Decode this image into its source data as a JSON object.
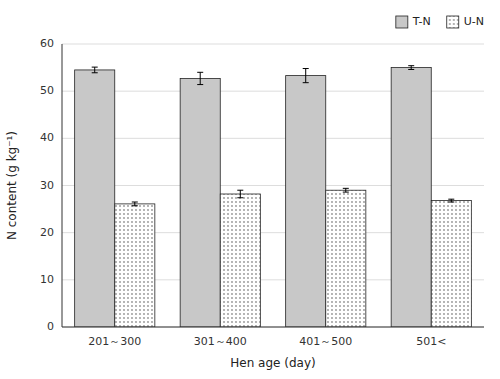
{
  "chart_data": {
    "type": "bar",
    "xlabel": "Hen age (day)",
    "ylabel": "N content (g kg⁻¹)",
    "categories": [
      "201～300",
      "301～400",
      "401～500",
      "501<"
    ],
    "series": [
      {
        "name": "T-N",
        "color": "#c8c8c8",
        "values": [
          54.5,
          52.7,
          53.3,
          55.0
        ],
        "errors": [
          0.6,
          1.3,
          1.5,
          0.4
        ]
      },
      {
        "name": "U-N",
        "color": "#ffffff",
        "values": [
          26.1,
          28.2,
          29.0,
          26.8
        ],
        "errors": [
          0.4,
          0.8,
          0.4,
          0.3
        ]
      }
    ],
    "ylim": [
      0,
      60
    ],
    "yticks": [
      0,
      10,
      20,
      30,
      40,
      50,
      60
    ],
    "grid": true,
    "legend": "upper right"
  }
}
